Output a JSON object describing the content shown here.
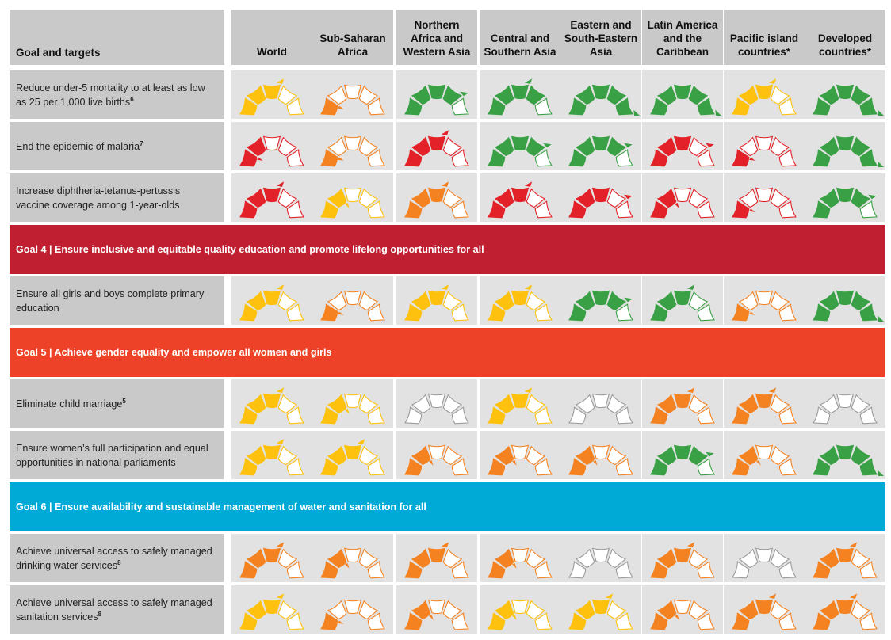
{
  "header": {
    "goal_col": "Goal and targets",
    "regions": [
      "World",
      "Sub-Saharan\nAfrica",
      "Northern\nAfrica and\nWestern Asia",
      "Central and\nSouthern Asia",
      "Eastern and\nSouth-Eastern\nAsia",
      "Latin America\nand the\nCaribbean",
      "Pacific island\ncountries*",
      "Developed\ncountries*"
    ]
  },
  "colors": {
    "red": "#e32128",
    "orange": "#f58220",
    "yellow": "#fdc10e",
    "green": "#3aa045",
    "grey": "#9a9a9a",
    "goal4": "#c01f32",
    "goal5": "#ed4227",
    "goal6": "#00aad7",
    "header_bg": "#c9c9c9",
    "cell_bg": "#e2e2e2"
  },
  "rows": [
    {
      "type": "target",
      "label": "Reduce under-5 mortality to at least as low as 25 per 1,000 live births",
      "note": "6",
      "gauges": [
        {
          "color": "yellow",
          "level": 3,
          "arrow": 3
        },
        {
          "color": "orange",
          "level": 1,
          "arrow": 1
        },
        {
          "color": "green",
          "level": 4,
          "arrow": 4
        },
        {
          "color": "green",
          "level": 4,
          "arrow": 3
        },
        {
          "color": "green",
          "level": 5,
          "arrow": 5
        },
        {
          "color": "green",
          "level": 5,
          "arrow": 5
        },
        {
          "color": "yellow",
          "level": 3,
          "arrow": 3
        },
        {
          "color": "green",
          "level": 5,
          "arrow": 5
        }
      ]
    },
    {
      "type": "target",
      "label": "End the epidemic of malaria",
      "note": "7",
      "gauges": [
        {
          "color": "red",
          "level": 2,
          "arrow": 1
        },
        {
          "color": "orange",
          "level": 1,
          "arrow": 1
        },
        {
          "color": "red",
          "level": 3,
          "arrow": 3
        },
        {
          "color": "green",
          "level": 4,
          "arrow": 4
        },
        {
          "color": "green",
          "level": 4,
          "arrow": 4
        },
        {
          "color": "red",
          "level": 3,
          "arrow": 4
        },
        {
          "color": "red",
          "level": 1,
          "arrow": 1
        },
        {
          "color": "green",
          "level": 5,
          "arrow": 5
        }
      ]
    },
    {
      "type": "target",
      "label": "Increase diphtheria-tetanus-pertussis vaccine coverage among 1-year-olds",
      "note": "",
      "gauges": [
        {
          "color": "red",
          "level": 3,
          "arrow": 3
        },
        {
          "color": "yellow",
          "level": 2,
          "arrow": 2
        },
        {
          "color": "orange",
          "level": 3,
          "arrow": 3
        },
        {
          "color": "red",
          "level": 3,
          "arrow": 3
        },
        {
          "color": "red",
          "level": 3,
          "arrow": 4
        },
        {
          "color": "red",
          "level": 2,
          "arrow": 2
        },
        {
          "color": "red",
          "level": 1,
          "arrow": 1
        },
        {
          "color": "green",
          "level": 4,
          "arrow": 4
        }
      ]
    },
    {
      "type": "goal",
      "color": "goal4",
      "label": "Goal 4 | Ensure inclusive and equitable quality education and promote lifelong opportunities for all"
    },
    {
      "type": "target",
      "label": "Ensure all girls and boys complete primary education",
      "note": "",
      "gauges": [
        {
          "color": "yellow",
          "level": 3,
          "arrow": 3
        },
        {
          "color": "orange",
          "level": 1,
          "arrow": 1
        },
        {
          "color": "yellow",
          "level": 3,
          "arrow": 3
        },
        {
          "color": "yellow",
          "level": 3,
          "arrow": 3
        },
        {
          "color": "green",
          "level": 4,
          "arrow": 4
        },
        {
          "color": "green",
          "level": 3,
          "arrow": 3
        },
        {
          "color": "orange",
          "level": 1,
          "arrow": 1
        },
        {
          "color": "green",
          "level": 5,
          "arrow": 5
        }
      ]
    },
    {
      "type": "goal",
      "color": "goal5",
      "label": "Goal 5 | Achieve gender equality and empower all women and girls"
    },
    {
      "type": "target",
      "label": "Eliminate child marriage",
      "note": "5",
      "gauges": [
        {
          "color": "yellow",
          "level": 3,
          "arrow": 3
        },
        {
          "color": "yellow",
          "level": 2,
          "arrow": 2
        },
        {
          "color": "grey",
          "level": 0,
          "arrow": 0
        },
        {
          "color": "yellow",
          "level": 3,
          "arrow": 3
        },
        {
          "color": "grey",
          "level": 0,
          "arrow": 0
        },
        {
          "color": "orange",
          "level": 3,
          "arrow": 3
        },
        {
          "color": "orange",
          "level": 3,
          "arrow": 3
        },
        {
          "color": "grey",
          "level": 0,
          "arrow": 0
        }
      ]
    },
    {
      "type": "target",
      "label": "Ensure women’s full participation and equal opportunities in national parliaments",
      "note": "",
      "gauges": [
        {
          "color": "yellow",
          "level": 3,
          "arrow": 3
        },
        {
          "color": "yellow",
          "level": 3,
          "arrow": 3
        },
        {
          "color": "orange",
          "level": 2,
          "arrow": 2
        },
        {
          "color": "orange",
          "level": 2,
          "arrow": 2
        },
        {
          "color": "orange",
          "level": 2,
          "arrow": 2
        },
        {
          "color": "green",
          "level": 4,
          "arrow": 4
        },
        {
          "color": "orange",
          "level": 2,
          "arrow": 2
        },
        {
          "color": "green",
          "level": 5,
          "arrow": 5
        }
      ]
    },
    {
      "type": "goal",
      "color": "goal6",
      "label": "Goal 6 | Ensure availability and sustainable management of water and sanitation for all"
    },
    {
      "type": "target",
      "label": "Achieve universal access to safely managed drinking water services",
      "note": "8",
      "gauges": [
        {
          "color": "orange",
          "level": 3,
          "arrow": 3
        },
        {
          "color": "orange",
          "level": 2,
          "arrow": 2
        },
        {
          "color": "orange",
          "level": 3,
          "arrow": 3
        },
        {
          "color": "orange",
          "level": 2,
          "arrow": 2
        },
        {
          "color": "grey",
          "level": 0,
          "arrow": 0
        },
        {
          "color": "orange",
          "level": 3,
          "arrow": 3
        },
        {
          "color": "grey",
          "level": 0,
          "arrow": 0
        },
        {
          "color": "orange",
          "level": 3,
          "arrow": 3
        }
      ]
    },
    {
      "type": "target",
      "label": "Achieve universal access to safely managed sanitation services",
      "note": "8",
      "gauges": [
        {
          "color": "yellow",
          "level": 3,
          "arrow": 3
        },
        {
          "color": "orange",
          "level": 1,
          "arrow": 1
        },
        {
          "color": "orange",
          "level": 2,
          "arrow": 2
        },
        {
          "color": "yellow",
          "level": 2,
          "arrow": 2
        },
        {
          "color": "yellow",
          "level": 3,
          "arrow": 3
        },
        {
          "color": "orange",
          "level": 2,
          "arrow": 2
        },
        {
          "color": "orange",
          "level": 3,
          "arrow": 3
        },
        {
          "color": "orange",
          "level": 3,
          "arrow": 3
        }
      ]
    }
  ]
}
